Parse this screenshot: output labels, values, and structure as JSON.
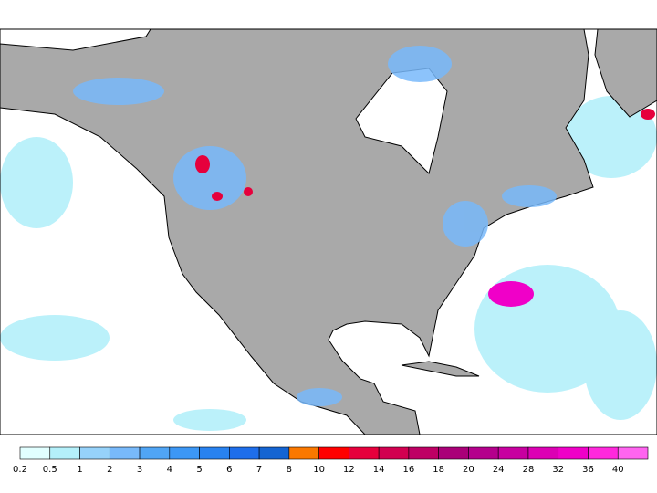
{
  "colorbar": {
    "labels": [
      0.2,
      0.5,
      1,
      2,
      3,
      4,
      5,
      6,
      7,
      8,
      10,
      12,
      14,
      16,
      18,
      20,
      24,
      28,
      32,
      36,
      40
    ],
    "colors": [
      "#e1ffff",
      "#b4f0fa",
      "#96d2fa",
      "#78b9fa",
      "#50a5f5",
      "#3c97f5",
      "#2882f0",
      "#1e6eeb",
      "#1464d2",
      "#fa7800",
      "#ff0000",
      "#e6003c",
      "#d20050",
      "#be0064",
      "#aa0078",
      "#b4008c",
      "#c800a0",
      "#dc00b4",
      "#f000c8",
      "#ff28dc",
      "#ff64f0"
    ]
  }
}
